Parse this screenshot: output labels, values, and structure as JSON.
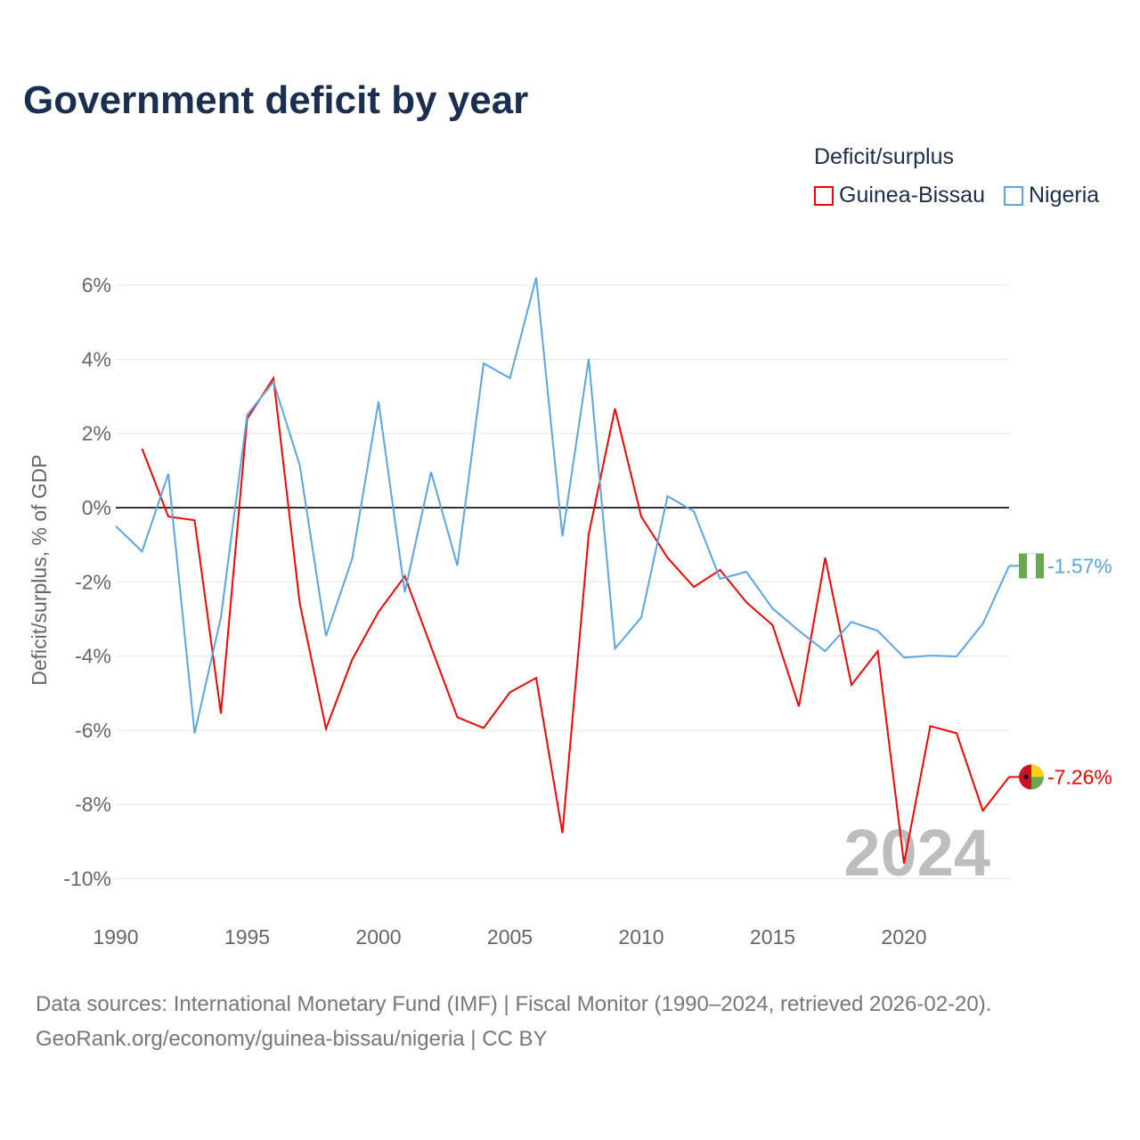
{
  "chart_data": {
    "type": "line",
    "title": "Government deficit by year",
    "ylabel": "Deficit/surplus, % of GDP",
    "xlabel": "",
    "ylim": [
      -10,
      6
    ],
    "xlim": [
      1990,
      2024
    ],
    "yticks": [
      6,
      4,
      2,
      0,
      -2,
      -4,
      -6,
      -8,
      -10
    ],
    "ytick_labels": [
      "6%",
      "4%",
      "2%",
      "0%",
      "-2%",
      "-4%",
      "-6%",
      "-8%",
      "-10%"
    ],
    "xticks": [
      1990,
      1995,
      2000,
      2005,
      2010,
      2015,
      2020
    ],
    "xtick_labels": [
      "1990",
      "1995",
      "2000",
      "2005",
      "2010",
      "2015",
      "2020"
    ],
    "grid": true,
    "legend_title": "Deficit/surplus",
    "legend_position": "top-right",
    "year_watermark": "2024",
    "series": [
      {
        "name": "Guinea-Bissau",
        "color": "#ff0000",
        "end_label": "-7.26%",
        "x": [
          1991,
          1992,
          1993,
          1994,
          1995,
          1996,
          1997,
          1998,
          1999,
          2000,
          2001,
          2002,
          2003,
          2004,
          2005,
          2006,
          2007,
          2008,
          2009,
          2010,
          2011,
          2012,
          2013,
          2014,
          2015,
          2016,
          2017,
          2018,
          2019,
          2020,
          2021,
          2022,
          2023,
          2024
        ],
        "values": [
          1.59,
          -0.24,
          -0.34,
          -5.55,
          2.4,
          3.49,
          -2.57,
          -5.96,
          -4.09,
          -2.81,
          -1.85,
          -3.75,
          -5.65,
          -5.94,
          -4.98,
          -4.59,
          -8.77,
          -0.72,
          2.67,
          -0.24,
          -1.35,
          -2.14,
          -1.68,
          -2.55,
          -3.17,
          -5.36,
          -1.35,
          -4.78,
          -3.87,
          -9.59,
          -5.89,
          -6.08,
          -8.17,
          -7.26
        ]
      },
      {
        "name": "Nigeria",
        "color": "#5aa5e6",
        "end_label": "-1.57%",
        "x": [
          1990,
          1991,
          1992,
          1993,
          1994,
          1995,
          1996,
          1997,
          1998,
          1999,
          2000,
          2001,
          2002,
          2003,
          2004,
          2005,
          2006,
          2007,
          2008,
          2009,
          2010,
          2011,
          2012,
          2013,
          2014,
          2015,
          2016,
          2017,
          2018,
          2019,
          2020,
          2021,
          2022,
          2023,
          2024
        ],
        "values": [
          -0.5,
          -1.18,
          0.91,
          -6.08,
          -2.96,
          2.5,
          3.39,
          1.15,
          -3.46,
          -1.37,
          2.86,
          -2.28,
          0.96,
          -1.56,
          3.89,
          3.49,
          6.2,
          -0.77,
          4.01,
          -3.8,
          -2.96,
          0.31,
          -0.1,
          -1.92,
          -1.73,
          -2.72,
          -3.32,
          -3.87,
          -3.08,
          -3.32,
          -4.04,
          -3.99,
          -4.01,
          -3.13,
          -1.57
        ]
      }
    ]
  },
  "source": {
    "line1": "Data sources: International Monetary Fund (IMF) | Fiscal Monitor (1990–2024, retrieved 2026-02-20).",
    "line2": "GeoRank.org/economy/guinea-bissau/nigeria | CC BY"
  }
}
